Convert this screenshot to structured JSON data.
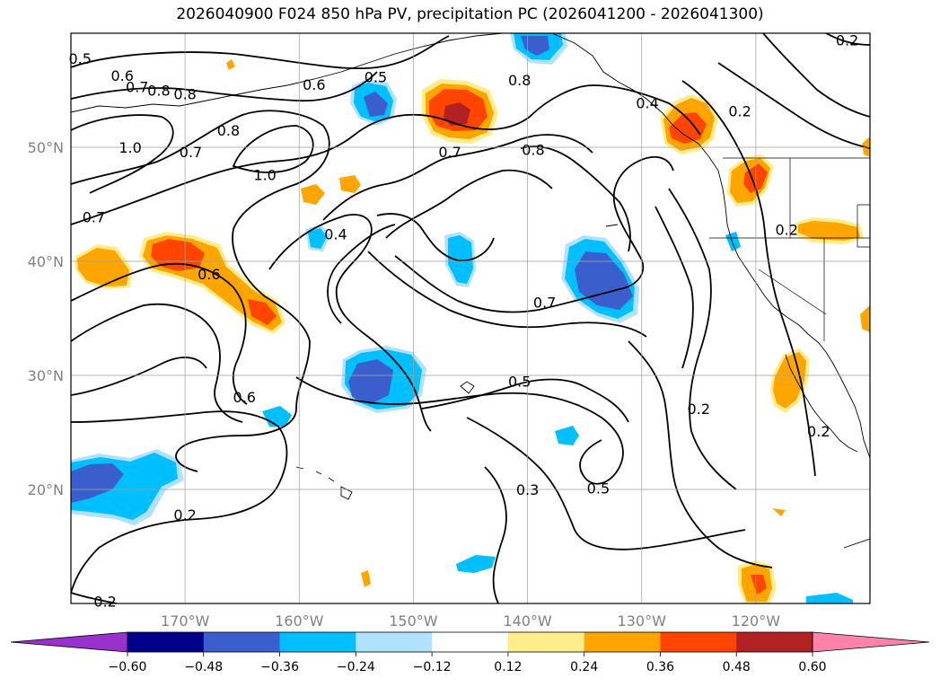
{
  "title": "2026040900 F024 850 hPa PV, precipitation PC (2026041200 - 2026041300)",
  "map": {
    "projection": "PlateCarree",
    "lon_range": [
      -180,
      -110
    ],
    "lat_range": [
      10,
      60
    ],
    "gridlines": true,
    "lat_ticks": [
      {
        "value": 50,
        "label": "50°N"
      },
      {
        "value": 40,
        "label": "40°N"
      },
      {
        "value": 30,
        "label": "30°N"
      },
      {
        "value": 20,
        "label": "20°N"
      }
    ],
    "lon_ticks": [
      {
        "value": -170,
        "label": "170°W"
      },
      {
        "value": -160,
        "label": "160°W"
      },
      {
        "value": -150,
        "label": "150°W"
      },
      {
        "value": -140,
        "label": "140°W"
      },
      {
        "value": -130,
        "label": "130°W"
      },
      {
        "value": -120,
        "label": "120°W"
      }
    ]
  },
  "contour_labels": [
    {
      "text": "0.5",
      "lon": -179.2,
      "lat": 57.8
    },
    {
      "text": "0.6",
      "lon": -175.5,
      "lat": 56.3
    },
    {
      "text": "0.7",
      "lon": -174.2,
      "lat": 55.3
    },
    {
      "text": "0.8",
      "lon": -172.3,
      "lat": 55.0
    },
    {
      "text": "0.8",
      "lon": -170.0,
      "lat": 54.7
    },
    {
      "text": "0.8",
      "lon": -166.2,
      "lat": 51.5
    },
    {
      "text": "1.0",
      "lon": -174.8,
      "lat": 50.0
    },
    {
      "text": "0.7",
      "lon": -169.5,
      "lat": 49.6
    },
    {
      "text": "1.0",
      "lon": -163.0,
      "lat": 47.6
    },
    {
      "text": "0.6",
      "lon": -158.7,
      "lat": 55.5
    },
    {
      "text": "0.5",
      "lon": -153.3,
      "lat": 56.2
    },
    {
      "text": "0.7",
      "lon": -146.8,
      "lat": 49.6
    },
    {
      "text": "0.8",
      "lon": -140.7,
      "lat": 55.9
    },
    {
      "text": "0.8",
      "lon": -139.5,
      "lat": 49.8
    },
    {
      "text": "0.4",
      "lon": -129.5,
      "lat": 53.9
    },
    {
      "text": "0.2",
      "lon": -121.4,
      "lat": 53.2
    },
    {
      "text": "0.2",
      "lon": -112.0,
      "lat": 59.4
    },
    {
      "text": "0.2",
      "lon": -117.3,
      "lat": 42.8
    },
    {
      "text": "0.7",
      "lon": -178.0,
      "lat": 43.9
    },
    {
      "text": "0.4",
      "lon": -156.8,
      "lat": 42.4
    },
    {
      "text": "0.6",
      "lon": -167.9,
      "lat": 38.9
    },
    {
      "text": "0.7",
      "lon": -138.5,
      "lat": 36.4
    },
    {
      "text": "0.6",
      "lon": -164.8,
      "lat": 28.1
    },
    {
      "text": "0.5",
      "lon": -140.7,
      "lat": 29.5
    },
    {
      "text": "0.2",
      "lon": -125.0,
      "lat": 27.1
    },
    {
      "text": "0.2",
      "lon": -114.5,
      "lat": 25.1
    },
    {
      "text": "0.3",
      "lon": -140.0,
      "lat": 20.0
    },
    {
      "text": "0.5",
      "lon": -133.8,
      "lat": 20.1
    },
    {
      "text": "0.2",
      "lon": -170.0,
      "lat": 17.8
    },
    {
      "text": "0.2",
      "lon": -177.0,
      "lat": 10.2
    }
  ],
  "colorbar": {
    "orientation": "horizontal",
    "extend": "both",
    "boundaries": [
      -0.6,
      -0.48,
      -0.36,
      -0.24,
      -0.12,
      0.12,
      0.24,
      0.36,
      0.48,
      0.6
    ],
    "colors": [
      "#9932cc",
      "#00008b",
      "#3a5fcd",
      "#00bfff",
      "#b0e2ff",
      "#ffffff",
      "#ffec8b",
      "#ffa500",
      "#ff4500",
      "#b22222",
      "#ff82ab"
    ],
    "tick_labels": [
      "−0.60",
      "−0.48",
      "−0.36",
      "−0.24",
      "−0.12",
      "0.12",
      "0.24",
      "0.36",
      "0.48",
      "0.60"
    ]
  }
}
